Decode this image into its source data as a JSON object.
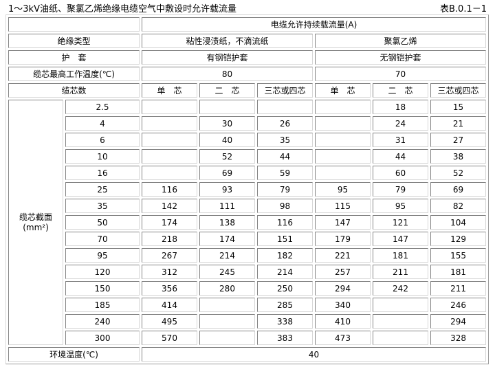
{
  "title": "1～3kV油纸、聚氯乙烯绝缘电缆空气中敷设时允许载流量",
  "table_ref": "表B.0.1－1",
  "header": {
    "capacity_title": "电缆允许持续载流量(A)",
    "insulation_label": "绝缘类型",
    "insulation_types": [
      "粘性浸渍纸，不滴流纸",
      "聚氯乙烯"
    ],
    "sheath_label": "护　套",
    "sheath_types": [
      "有钢铠护套",
      "无钢铠护套"
    ],
    "max_temp_label": "缆芯最高工作温度(℃)",
    "max_temps": [
      "80",
      "70"
    ],
    "core_count_label": "缆芯数",
    "core_columns": [
      "单　芯",
      "二　芯",
      "三芯或四芯",
      "单　芯",
      "二　芯",
      "三芯或四芯"
    ]
  },
  "section_label": {
    "line1": "缆芯截面",
    "line2": "(mm²)"
  },
  "rows": [
    {
      "size": "2.5",
      "values": [
        "",
        "",
        "",
        "",
        "18",
        "15"
      ]
    },
    {
      "size": "4",
      "values": [
        "",
        "30",
        "26",
        "",
        "24",
        "21"
      ]
    },
    {
      "size": "6",
      "values": [
        "",
        "40",
        "35",
        "",
        "31",
        "27"
      ]
    },
    {
      "size": "10",
      "values": [
        "",
        "52",
        "44",
        "",
        "44",
        "38"
      ]
    },
    {
      "size": "16",
      "values": [
        "",
        "69",
        "59",
        "",
        "60",
        "52"
      ]
    },
    {
      "size": "25",
      "values": [
        "116",
        "93",
        "79",
        "95",
        "79",
        "69"
      ]
    },
    {
      "size": "35",
      "values": [
        "142",
        "111",
        "98",
        "115",
        "95",
        "82"
      ]
    },
    {
      "size": "50",
      "values": [
        "174",
        "138",
        "116",
        "147",
        "121",
        "104"
      ]
    },
    {
      "size": "70",
      "values": [
        "218",
        "174",
        "151",
        "179",
        "147",
        "129"
      ]
    },
    {
      "size": "95",
      "values": [
        "267",
        "214",
        "182",
        "221",
        "181",
        "155"
      ]
    },
    {
      "size": "120",
      "values": [
        "312",
        "245",
        "214",
        "257",
        "211",
        "181"
      ]
    },
    {
      "size": "150",
      "values": [
        "356",
        "280",
        "250",
        "294",
        "242",
        "211"
      ]
    },
    {
      "size": "185",
      "values": [
        "414",
        "",
        "285",
        "340",
        "",
        "246"
      ]
    },
    {
      "size": "240",
      "values": [
        "495",
        "",
        "338",
        "410",
        "",
        "294"
      ]
    },
    {
      "size": "300",
      "values": [
        "570",
        "",
        "383",
        "473",
        "",
        "328"
      ]
    }
  ],
  "footer": {
    "label": "环境温度(℃)",
    "value": "40"
  }
}
